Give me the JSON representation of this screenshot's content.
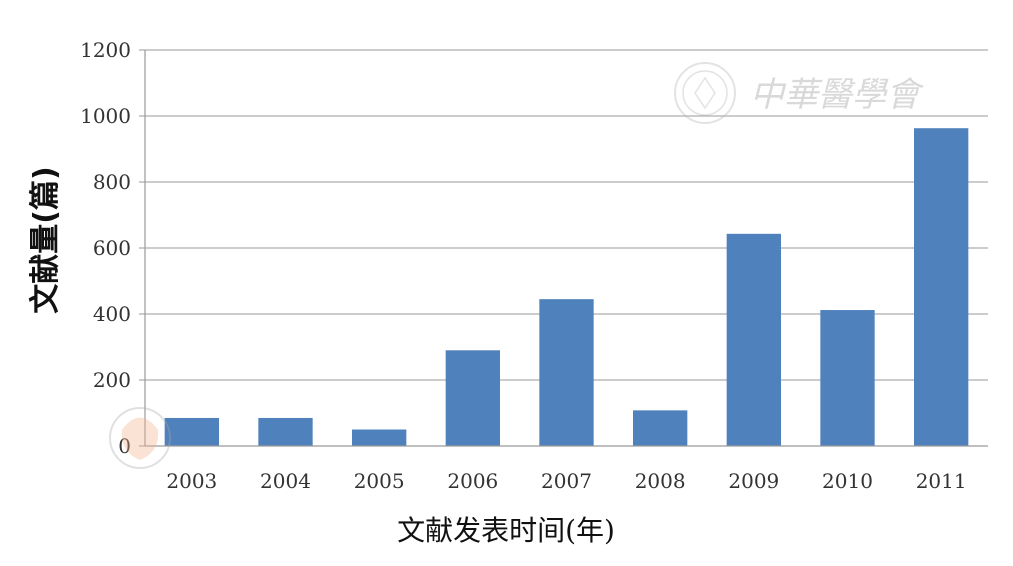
{
  "chart_data": {
    "type": "bar",
    "categories": [
      "2003",
      "2004",
      "2005",
      "2006",
      "2007",
      "2008",
      "2009",
      "2010",
      "2011"
    ],
    "values": [
      85,
      85,
      50,
      290,
      445,
      108,
      643,
      412,
      963
    ],
    "xlabel": "文献发表时间(年)",
    "ylabel": "文献量(篇)",
    "ylim": [
      0,
      1200
    ],
    "yticks": [
      "0",
      "200",
      "400",
      "600",
      "800",
      "1000",
      "1200"
    ],
    "grid": true,
    "bar_color": "#4F81BD"
  },
  "watermark": {
    "text": "中華醫學會"
  }
}
